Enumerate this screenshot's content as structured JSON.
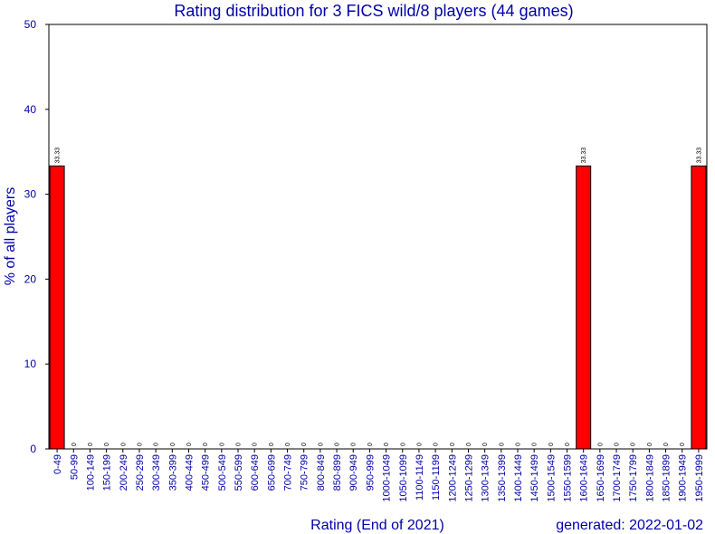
{
  "chart_data": {
    "type": "bar",
    "title": "Rating distribution for 3 FICS wild/8 players (44 games)",
    "xlabel": "Rating (End of 2021)",
    "ylabel": "% of all players",
    "footer": "generated: 2022-01-02",
    "ylim": [
      0,
      50
    ],
    "yticks": [
      "0",
      "10",
      "20",
      "30",
      "40",
      "50"
    ],
    "bar_color": "#ff0000",
    "categories": [
      "0-49",
      "50-99",
      "100-149",
      "150-199",
      "200-249",
      "250-299",
      "300-349",
      "350-399",
      "400-449",
      "450-499",
      "500-549",
      "550-599",
      "600-649",
      "650-699",
      "700-749",
      "750-799",
      "800-849",
      "850-899",
      "900-949",
      "950-999",
      "1000-1049",
      "1050-1099",
      "1100-1149",
      "1150-1199",
      "1200-1249",
      "1250-1299",
      "1300-1349",
      "1350-1399",
      "1400-1449",
      "1450-1499",
      "1500-1549",
      "1550-1599",
      "1600-1649",
      "1650-1699",
      "1700-1749",
      "1750-1799",
      "1800-1849",
      "1850-1899",
      "1900-1949",
      "1950-1999"
    ],
    "values": [
      33.33,
      0,
      0,
      0,
      0,
      0,
      0,
      0,
      0,
      0,
      0,
      0,
      0,
      0,
      0,
      0,
      0,
      0,
      0,
      0,
      0,
      0,
      0,
      0,
      0,
      0,
      0,
      0,
      0,
      0,
      0,
      0,
      33.33,
      0,
      0,
      0,
      0,
      0,
      0,
      33.33
    ],
    "data_labels": [
      "33.33",
      "0",
      "0",
      "0",
      "0",
      "0",
      "0",
      "0",
      "0",
      "0",
      "0",
      "0",
      "0",
      "0",
      "0",
      "0",
      "0",
      "0",
      "0",
      "0",
      "0",
      "0",
      "0",
      "0",
      "0",
      "0",
      "0",
      "0",
      "0",
      "0",
      "0",
      "0",
      "33.33",
      "0",
      "0",
      "0",
      "0",
      "0",
      "0",
      "33.33"
    ]
  }
}
